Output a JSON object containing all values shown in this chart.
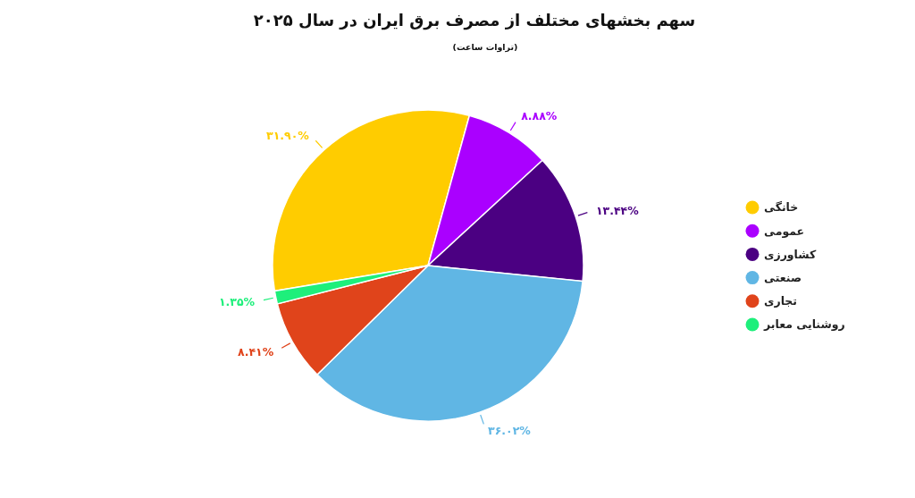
{
  "chart_data": {
    "type": "pie",
    "title": "سهم بخشهای مختلف از مصرف برق ایران در سال ۲۰۲۵",
    "subtitle": "(تراوات ساعت)",
    "categories": [
      "خانگی",
      "عمومی",
      "کشاورزی",
      "صنعتی",
      "تجاری",
      "روشنایی معابر"
    ],
    "values": [
      31.9,
      8.88,
      13.44,
      36.02,
      8.41,
      1.35
    ],
    "colors": [
      "#ffcc00",
      "#aa00ff",
      "#4b0082",
      "#60b6e4",
      "#e0441b",
      "#1eef7b"
    ],
    "value_labels": [
      "۳۱.۹۰%",
      "۸.۸۸%",
      "۱۳.۴۴%",
      "۳۶.۰۲%",
      "۸.۴۱%",
      "۱.۳۵%"
    ],
    "legend": "right"
  }
}
